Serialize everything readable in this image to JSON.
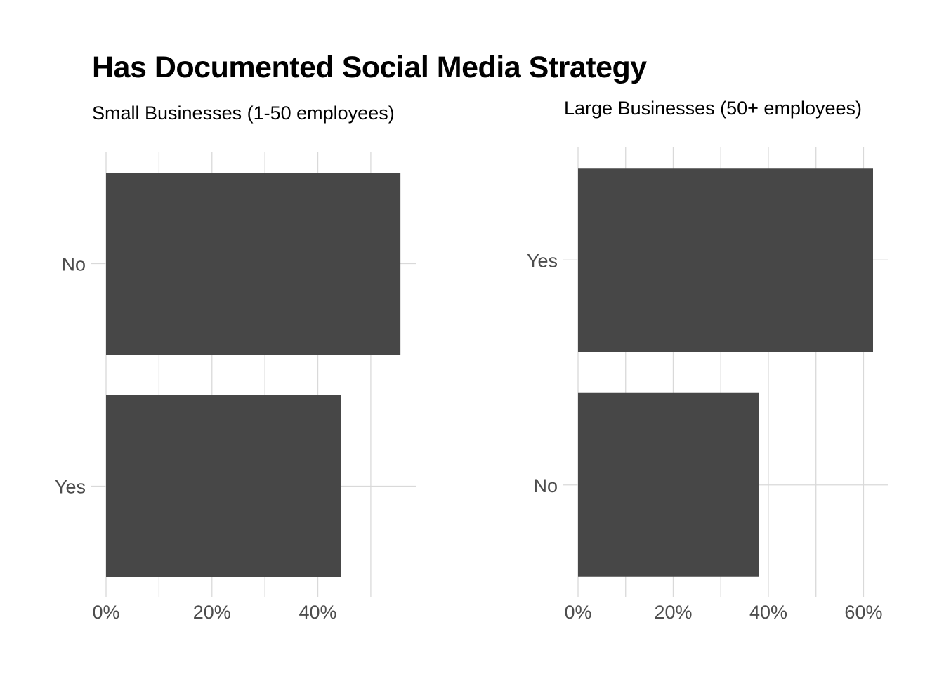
{
  "title": "Has Documented Social Media Strategy",
  "bar_color": "#474747",
  "chart_data": [
    {
      "type": "bar",
      "orientation": "horizontal",
      "subtitle": "Small Businesses (1-50 employees)",
      "categories": [
        "No",
        "Yes"
      ],
      "values": [
        0.556,
        0.444
      ],
      "xlim": [
        0,
        0.585
      ],
      "xticks": [
        0,
        0.2,
        0.4
      ],
      "xtick_labels": [
        "0%",
        "20%",
        "40%"
      ],
      "grid": true
    },
    {
      "type": "bar",
      "orientation": "horizontal",
      "subtitle": "Large Businesses (50+ employees)",
      "categories": [
        "Yes",
        "No"
      ],
      "values": [
        0.62,
        0.38
      ],
      "xlim": [
        0,
        0.651
      ],
      "xticks": [
        0,
        0.2,
        0.4,
        0.6
      ],
      "xtick_labels": [
        "0%",
        "20%",
        "40%",
        "60%"
      ],
      "grid": true
    }
  ]
}
